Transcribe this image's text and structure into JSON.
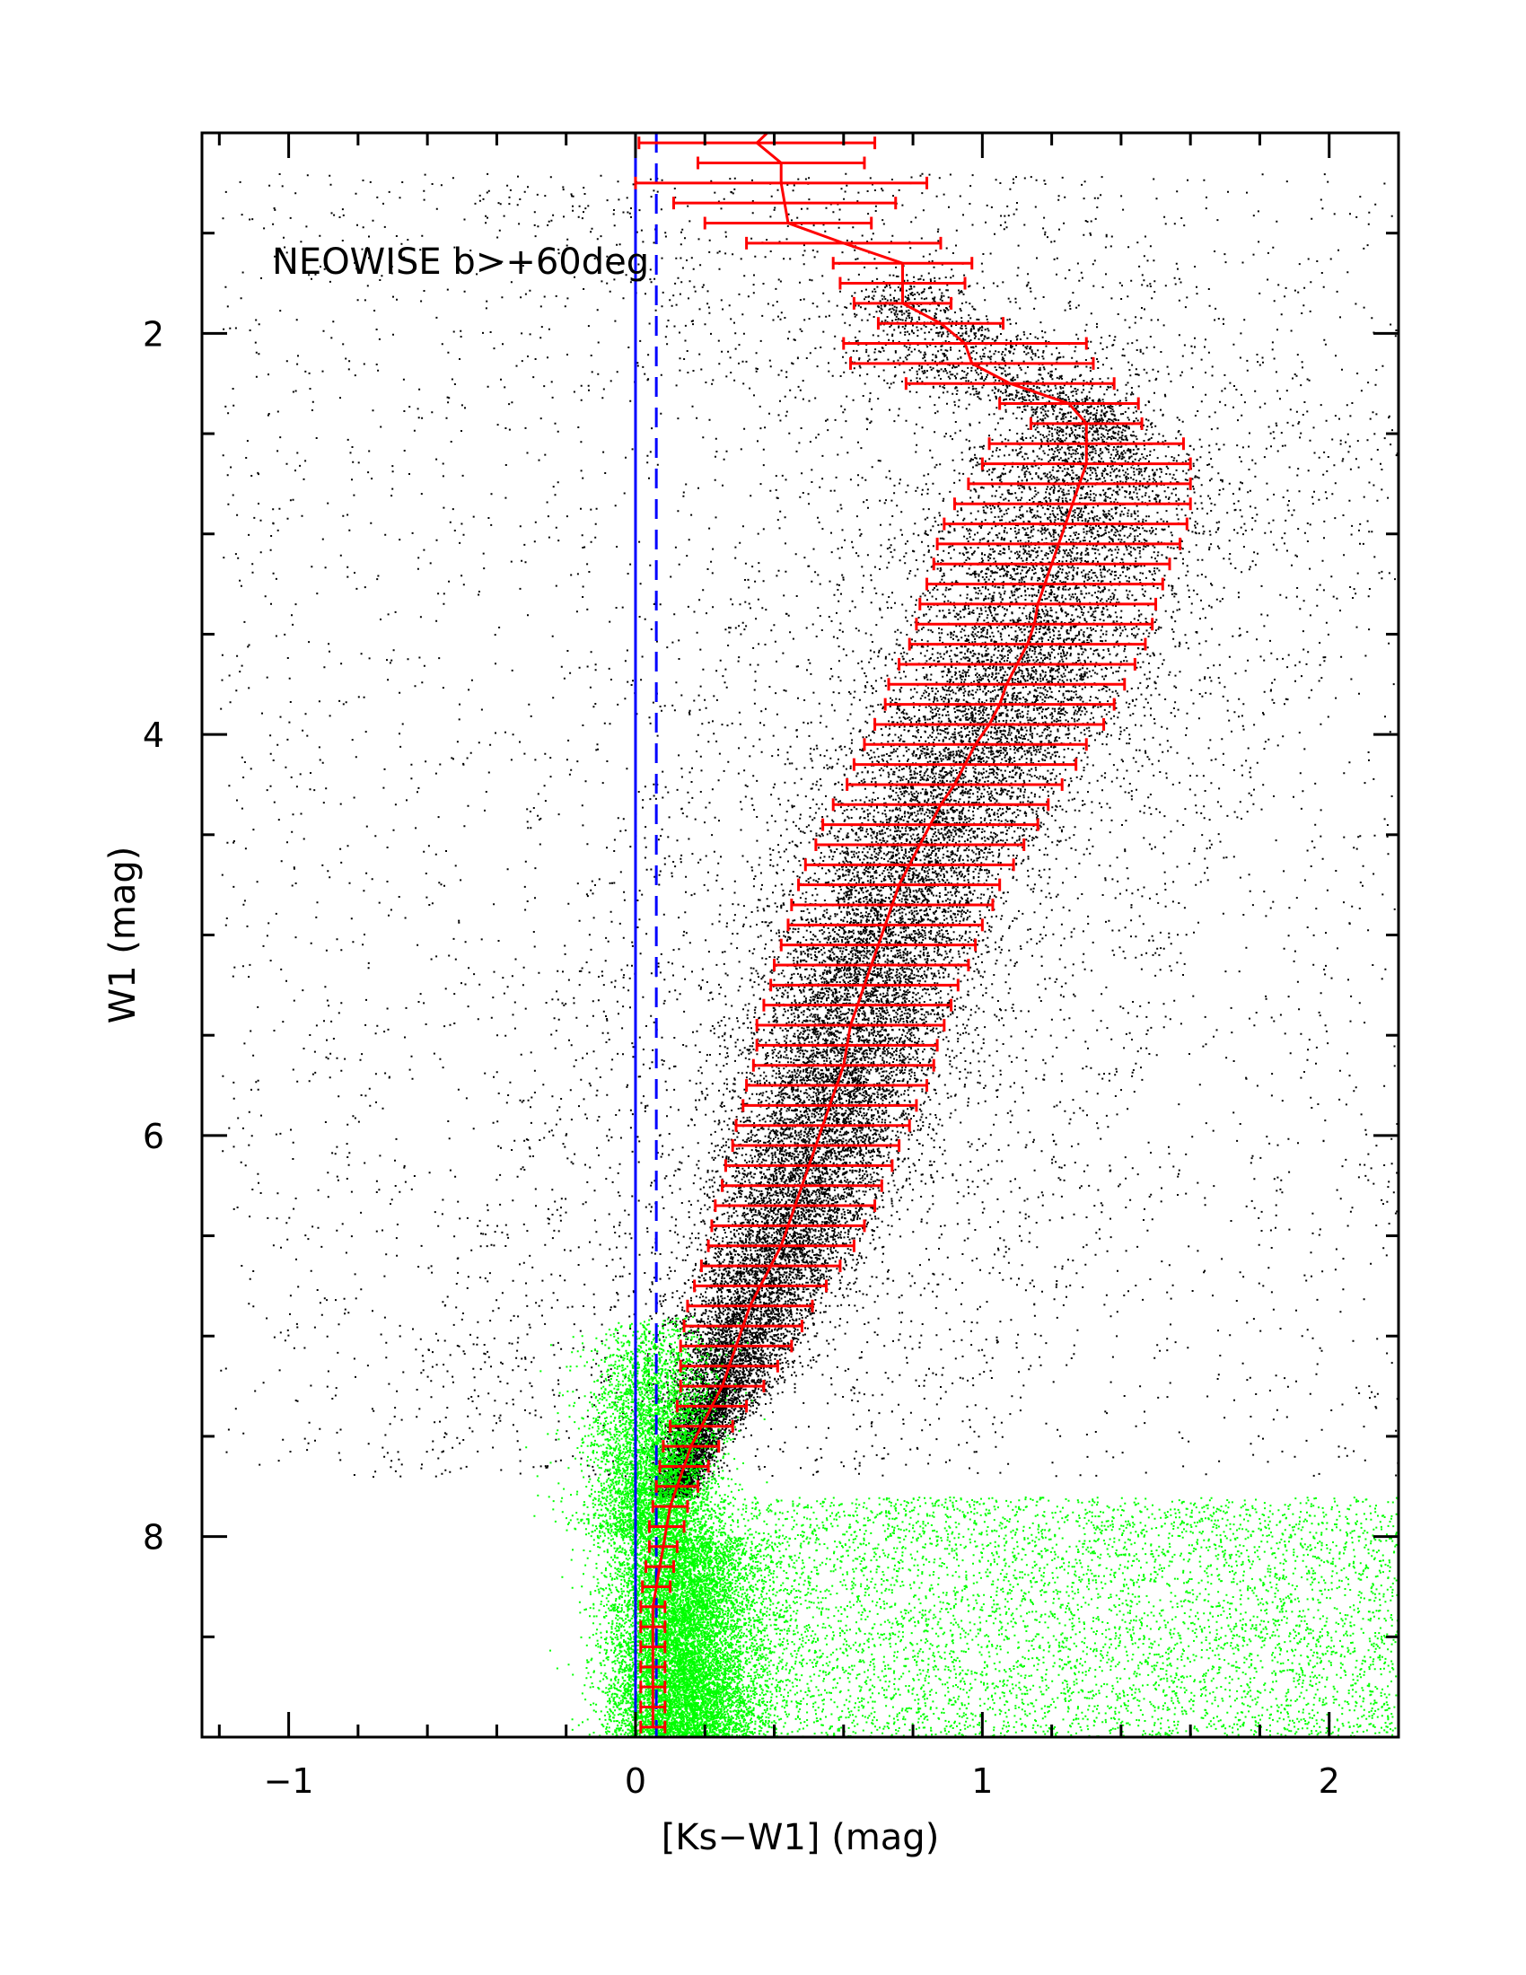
{
  "chart_data": {
    "type": "scatter",
    "title": "",
    "annotation": "NEOWISE b>+60deg",
    "xlabel": "[Ks−W1] (mag)",
    "ylabel": "W1 (mag)",
    "xlim": [
      -1.25,
      2.2
    ],
    "ylim": [
      9.0,
      1.0
    ],
    "y_inverted": true,
    "x_ticks": [
      -1,
      0,
      1,
      2
    ],
    "x_tick_labels": [
      "−1",
      "0",
      "1",
      "2"
    ],
    "y_ticks": [
      2,
      4,
      6,
      8
    ],
    "y_tick_labels": [
      "2",
      "4",
      "6",
      "8"
    ],
    "grid": false,
    "colors": {
      "scatter_main": "#000000",
      "scatter_faint": "#00ff00",
      "median": "#ff0000",
      "reference_line": "#0000ff"
    },
    "reference_lines": [
      {
        "x": 0.0,
        "style": "solid"
      },
      {
        "x": 0.06,
        "style": "dashed"
      }
    ],
    "median": {
      "w1": [
        1.0,
        1.05,
        1.15,
        1.25,
        1.35,
        1.45,
        1.55,
        1.65,
        1.75,
        1.85,
        1.95,
        2.05,
        2.15,
        2.25,
        2.35,
        2.45,
        2.55,
        2.65,
        2.75,
        2.85,
        2.95,
        3.05,
        3.15,
        3.25,
        3.35,
        3.45,
        3.55,
        3.65,
        3.75,
        3.85,
        3.95,
        4.05,
        4.15,
        4.25,
        4.35,
        4.45,
        4.55,
        4.65,
        4.75,
        4.85,
        4.95,
        5.05,
        5.15,
        5.25,
        5.35,
        5.45,
        5.55,
        5.65,
        5.75,
        5.85,
        5.95,
        6.05,
        6.15,
        6.25,
        6.35,
        6.45,
        6.55,
        6.65,
        6.75,
        6.85,
        6.95,
        7.05,
        7.15,
        7.25,
        7.35,
        7.45,
        7.55,
        7.65,
        7.75,
        7.85,
        7.95,
        8.05,
        8.15,
        8.25,
        8.35,
        8.45,
        8.55,
        8.65,
        8.75,
        8.85,
        8.95
      ],
      "color": [
        0.38,
        0.35,
        0.42,
        0.42,
        0.43,
        0.44,
        0.6,
        0.77,
        0.77,
        0.77,
        0.88,
        0.95,
        0.97,
        1.08,
        1.25,
        1.3,
        1.3,
        1.3,
        1.28,
        1.26,
        1.24,
        1.22,
        1.2,
        1.18,
        1.16,
        1.15,
        1.13,
        1.1,
        1.07,
        1.05,
        1.02,
        0.98,
        0.95,
        0.92,
        0.88,
        0.85,
        0.82,
        0.79,
        0.76,
        0.74,
        0.72,
        0.7,
        0.68,
        0.66,
        0.64,
        0.62,
        0.61,
        0.6,
        0.58,
        0.56,
        0.54,
        0.52,
        0.5,
        0.48,
        0.46,
        0.44,
        0.42,
        0.39,
        0.36,
        0.33,
        0.31,
        0.29,
        0.27,
        0.25,
        0.22,
        0.19,
        0.16,
        0.14,
        0.12,
        0.1,
        0.09,
        0.08,
        0.07,
        0.06,
        0.05,
        0.05,
        0.05,
        0.05,
        0.05,
        0.05,
        0.05
      ],
      "half_width": [
        0.0,
        0.34,
        0.24,
        0.42,
        0.32,
        0.24,
        0.28,
        0.2,
        0.18,
        0.14,
        0.18,
        0.35,
        0.35,
        0.3,
        0.2,
        0.16,
        0.28,
        0.3,
        0.32,
        0.34,
        0.35,
        0.35,
        0.34,
        0.34,
        0.34,
        0.34,
        0.34,
        0.34,
        0.34,
        0.33,
        0.33,
        0.32,
        0.32,
        0.31,
        0.31,
        0.31,
        0.3,
        0.3,
        0.29,
        0.29,
        0.28,
        0.28,
        0.28,
        0.27,
        0.27,
        0.27,
        0.26,
        0.26,
        0.26,
        0.25,
        0.25,
        0.24,
        0.24,
        0.23,
        0.23,
        0.22,
        0.21,
        0.2,
        0.19,
        0.18,
        0.17,
        0.16,
        0.14,
        0.12,
        0.1,
        0.09,
        0.08,
        0.07,
        0.06,
        0.05,
        0.05,
        0.04,
        0.04,
        0.04,
        0.035,
        0.035,
        0.035,
        0.035,
        0.035,
        0.035,
        0.035
      ]
    }
  }
}
